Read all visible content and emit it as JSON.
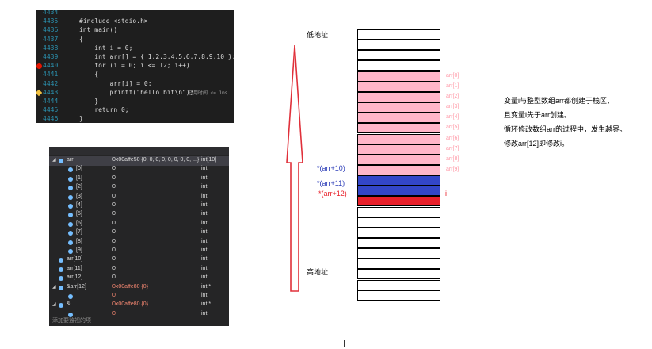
{
  "editor": {
    "lines": [
      {
        "num": "4434",
        "code": ""
      },
      {
        "num": "4435",
        "code": "#include <stdio.h>"
      },
      {
        "num": "4436",
        "code": "int main()"
      },
      {
        "num": "4437",
        "code": "{"
      },
      {
        "num": "4438",
        "code": "    int i = 0;"
      },
      {
        "num": "4439",
        "code": "    int arr[] = { 1,2,3,4,5,6,7,8,9,10 };"
      },
      {
        "num": "4440",
        "code": "    for (i = 0; i <= 12; i++)"
      },
      {
        "num": "4441",
        "code": "    {"
      },
      {
        "num": "4442",
        "code": "        arr[i] = 0;"
      },
      {
        "num": "4443",
        "code": "        printf(\"hello bit\\n\");"
      },
      {
        "num": "4444",
        "code": "    }"
      },
      {
        "num": "4445",
        "code": "    return 0;"
      },
      {
        "num": "4446",
        "code": "}"
      }
    ],
    "elapsed_hint": "已用时间 <= 1ms"
  },
  "watch": {
    "rows": [
      {
        "name": "arr",
        "value": "0x00affe50 {0, 0, 0, 0, 0, 0, 0, 0, ...}",
        "type": "int[10]",
        "level": 0,
        "expanded": true
      },
      {
        "name": "[0]",
        "value": "0",
        "type": "int",
        "level": 1
      },
      {
        "name": "[1]",
        "value": "0",
        "type": "int",
        "level": 1
      },
      {
        "name": "[2]",
        "value": "0",
        "type": "int",
        "level": 1
      },
      {
        "name": "[3]",
        "value": "0",
        "type": "int",
        "level": 1
      },
      {
        "name": "[4]",
        "value": "0",
        "type": "int",
        "level": 1
      },
      {
        "name": "[5]",
        "value": "0",
        "type": "int",
        "level": 1
      },
      {
        "name": "[6]",
        "value": "0",
        "type": "int",
        "level": 1
      },
      {
        "name": "[7]",
        "value": "0",
        "type": "int",
        "level": 1
      },
      {
        "name": "[8]",
        "value": "0",
        "type": "int",
        "level": 1
      },
      {
        "name": "[9]",
        "value": "0",
        "type": "int",
        "level": 1
      },
      {
        "name": "arr[10]",
        "value": "0",
        "type": "int",
        "level": 0
      },
      {
        "name": "arr[11]",
        "value": "0",
        "type": "int",
        "level": 0
      },
      {
        "name": "arr[12]",
        "value": "0",
        "type": "int",
        "level": 0
      },
      {
        "name": "&arr[12]",
        "value": "0x00affe80 {0}",
        "type": "int *",
        "level": 0,
        "expanded": true,
        "red": true
      },
      {
        "name": "",
        "value": "0",
        "type": "int",
        "level": 1,
        "red": true
      },
      {
        "name": "&i",
        "value": "0x00affe80 {0}",
        "type": "int *",
        "level": 0,
        "expanded": true,
        "red": true
      },
      {
        "name": "",
        "value": "0",
        "type": "int",
        "level": 1,
        "red": true
      }
    ],
    "add_watch_hint": "添加要监视的项"
  },
  "diagram": {
    "low_addr_label": "低地址",
    "high_addr_label": "高地址",
    "arrow_color": "#e0303a",
    "array_color": "#ffb6c8",
    "overflow_color": "#3346c8",
    "i_color": "#e8202a",
    "cell_count": 26,
    "arr_start_index": 4,
    "arr_labels": [
      "arr[0]",
      "arr[1]",
      "arr[2]",
      "arr[3]",
      "arr[4]",
      "arr[5]",
      "arr[6]",
      "arr[7]",
      "arr[8]",
      "arr[9]"
    ],
    "ptr_arr10": "*(arr+10)",
    "ptr_arr11": "*(arr+11)",
    "ptr_arr12": "*(arr+12)",
    "i_label": "i"
  },
  "note": {
    "lines": [
      "变量i与整型数组arr都创建于栈区，",
      "且变量i先于arr创建。",
      "循环修改数组arr的过程中，发生越界。",
      "修改arr[12]即修改i。"
    ]
  }
}
